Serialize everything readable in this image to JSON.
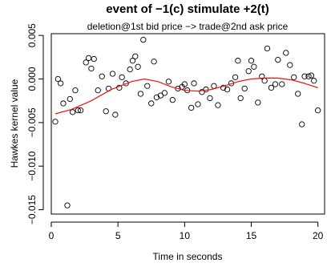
{
  "chart_data": {
    "type": "scatter",
    "title": "event of −1(c) stimulate +2(t)",
    "subtitle": "deletion@1st bid price −> trade@2nd ask price",
    "xlabel": "Time in seconds",
    "ylabel": "Hawkes kernel value",
    "xlim": [
      0,
      20.5
    ],
    "ylim": [
      -0.0155,
      0.0052
    ],
    "xticks": [
      "0",
      "5",
      "10",
      "15",
      "20"
    ],
    "yticks": [
      "−0.015",
      "−0.010",
      "−0.005",
      "0.000",
      "0.005"
    ],
    "grid": false,
    "points": [
      [
        0.3,
        -0.0049
      ],
      [
        0.5,
        0.0
      ],
      [
        0.7,
        -0.0005
      ],
      [
        0.9,
        -0.0028
      ],
      [
        1.2,
        -0.0145
      ],
      [
        1.4,
        -0.0023
      ],
      [
        1.6,
        -0.0038
      ],
      [
        1.8,
        -0.0013
      ],
      [
        2.0,
        -0.0036
      ],
      [
        2.2,
        -0.0036
      ],
      [
        2.6,
        0.0019
      ],
      [
        2.8,
        0.0024
      ],
      [
        3.0,
        0.0012
      ],
      [
        3.2,
        0.0023
      ],
      [
        3.5,
        -0.0013
      ],
      [
        3.8,
        0.0003
      ],
      [
        4.1,
        -0.0037
      ],
      [
        4.3,
        -0.0011
      ],
      [
        4.6,
        0.0006
      ],
      [
        4.8,
        -0.0041
      ],
      [
        5.1,
        -0.001
      ],
      [
        5.3,
        0.0002
      ],
      [
        5.6,
        -0.0005
      ],
      [
        5.9,
        0.0011
      ],
      [
        6.1,
        0.0021
      ],
      [
        6.3,
        0.0026
      ],
      [
        6.5,
        0.0014
      ],
      [
        6.7,
        -0.0017
      ],
      [
        6.9,
        0.0045
      ],
      [
        7.2,
        -0.0008
      ],
      [
        7.5,
        -0.0028
      ],
      [
        7.7,
        0.002
      ],
      [
        7.9,
        -0.0021
      ],
      [
        8.2,
        -0.0019
      ],
      [
        8.5,
        -0.0016
      ],
      [
        8.8,
        -0.0003
      ],
      [
        9.1,
        -0.0024
      ],
      [
        9.5,
        -0.0011
      ],
      [
        9.8,
        -0.0009
      ],
      [
        10.0,
        -0.0006
      ],
      [
        10.2,
        -0.0013
      ],
      [
        10.5,
        -0.0033
      ],
      [
        10.7,
        -0.0005
      ],
      [
        11.0,
        -0.0029
      ],
      [
        11.3,
        -0.0015
      ],
      [
        11.6,
        -0.0012
      ],
      [
        11.9,
        -0.0022
      ],
      [
        12.2,
        -0.0008
      ],
      [
        12.5,
        -0.003
      ],
      [
        12.9,
        -0.001
      ],
      [
        13.2,
        -0.0012
      ],
      [
        13.5,
        -0.0005
      ],
      [
        13.8,
        0.0002
      ],
      [
        14.0,
        0.0021
      ],
      [
        14.2,
        -0.0022
      ],
      [
        14.5,
        -0.0011
      ],
      [
        14.8,
        0.0009
      ],
      [
        15.0,
        0.0021
      ],
      [
        15.2,
        0.0014
      ],
      [
        15.5,
        -0.0027
      ],
      [
        15.8,
        0.0003
      ],
      [
        16.0,
        -0.0002
      ],
      [
        16.2,
        0.0035
      ],
      [
        16.5,
        -0.001
      ],
      [
        16.8,
        -0.0006
      ],
      [
        17.0,
        0.0022
      ],
      [
        17.3,
        -0.0006
      ],
      [
        17.6,
        0.003
      ],
      [
        17.9,
        0.0016
      ],
      [
        18.2,
        0.0002
      ],
      [
        18.5,
        -0.0017
      ],
      [
        18.8,
        -0.0052
      ],
      [
        19.0,
        0.0003
      ],
      [
        19.3,
        0.0003
      ],
      [
        19.5,
        0.0004
      ],
      [
        19.7,
        -0.0002
      ],
      [
        20.0,
        -0.0036
      ]
    ],
    "fit_line": {
      "color": "#ee1111",
      "points": [
        [
          0.3,
          -0.004
        ],
        [
          1.5,
          -0.0035
        ],
        [
          3.0,
          -0.0025
        ],
        [
          4.5,
          -0.0012
        ],
        [
          6.0,
          -0.0003
        ],
        [
          7.0,
          0.0
        ],
        [
          8.0,
          -0.0003
        ],
        [
          9.0,
          -0.0009
        ],
        [
          10.0,
          -0.0013
        ],
        [
          11.0,
          -0.0014
        ],
        [
          12.0,
          -0.0012
        ],
        [
          13.0,
          -0.0008
        ],
        [
          14.0,
          -0.0003
        ],
        [
          15.0,
          0.0
        ],
        [
          16.0,
          0.0001
        ],
        [
          17.0,
          0.0001
        ],
        [
          18.0,
          -0.0001
        ],
        [
          19.0,
          -0.0005
        ],
        [
          20.0,
          -0.001
        ]
      ]
    }
  }
}
